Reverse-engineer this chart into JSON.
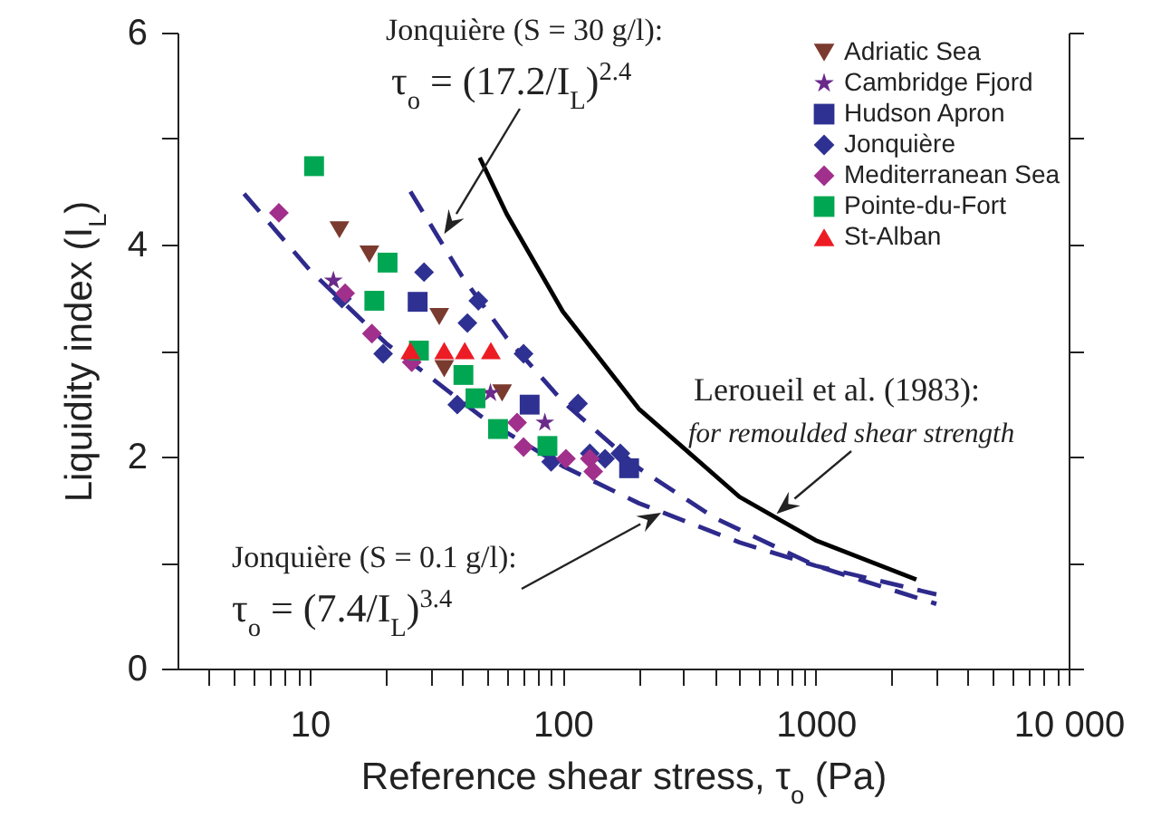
{
  "chart_data": {
    "type": "scatter",
    "xlabel": "Reference shear stress, τ$_{o}$ (Pa)",
    "ylabel": "Liquidity index (I$_{L}$)",
    "log": "x",
    "xlim": [
      3,
      10000
    ],
    "xticks": [
      {
        "value": 4,
        "label": null
      },
      {
        "value": 5,
        "label": null
      },
      {
        "value": 6,
        "label": null
      },
      {
        "value": 7,
        "label": null
      },
      {
        "value": 8,
        "label": null
      },
      {
        "value": 9,
        "label": null
      },
      10,
      {
        "value": 20,
        "label": null
      },
      {
        "value": 30,
        "label": null
      },
      {
        "value": 40,
        "label": null
      },
      {
        "value": 50,
        "label": null
      },
      {
        "value": 60,
        "label": null
      },
      {
        "value": 70,
        "label": null
      },
      {
        "value": 80,
        "label": null
      },
      {
        "value": 90,
        "label": null
      },
      100,
      {
        "value": 200,
        "label": null
      },
      {
        "value": 300,
        "label": null
      },
      {
        "value": 400,
        "label": null
      },
      {
        "value": 500,
        "label": null
      },
      {
        "value": 600,
        "label": null
      },
      {
        "value": 700,
        "label": null
      },
      {
        "value": 800,
        "label": null
      },
      {
        "value": 900,
        "label": null
      },
      1000,
      {
        "value": 2000,
        "label": null
      },
      {
        "value": 3000,
        "label": null
      },
      {
        "value": 4000,
        "label": null
      },
      {
        "value": 5000,
        "label": null
      },
      {
        "value": 6000,
        "label": null
      },
      {
        "value": 7000,
        "label": null
      },
      {
        "value": 8000,
        "label": null
      },
      {
        "value": 9000,
        "label": null
      },
      {
        "value": 10000,
        "label": "10 000"
      }
    ],
    "ylim": [
      0,
      6
    ],
    "yticks": [
      0,
      {
        "value": 1,
        "label": null
      },
      2,
      {
        "value": 3,
        "label": null
      },
      4,
      {
        "value": 5,
        "label": null
      },
      6
    ],
    "tick_labels": "xy",
    "grid": false,
    "legend": "top right",
    "series": [
      {
        "name": "Adriatic Sea",
        "color": "#7b3a2e",
        "marker": "triangle-down",
        "x": [
          13.1,
          17.2,
          32.5,
          34,
          57.6
        ],
        "values": [
          4.14,
          3.91,
          3.32,
          2.83,
          2.6
        ]
      },
      {
        "name": "Cambridge Fjord",
        "color": "#6a2a8a",
        "marker": "star",
        "x": [
          12.4,
          51.8,
          85
        ],
        "values": [
          3.66,
          2.6,
          2.32
        ]
      },
      {
        "name": "Hudson Apron",
        "color": "#2e3192",
        "marker": "square",
        "x": [
          26.7,
          74,
          183
        ],
        "values": [
          3.46,
          2.49,
          1.89
        ]
      },
      {
        "name": "Jonquière",
        "color": "#2e3192",
        "marker": "diamond",
        "x": [
          13.4,
          19.5,
          28.3,
          38.3,
          42,
          46.4,
          70,
          90,
          115,
          128,
          147,
          169
        ],
        "values": [
          3.49,
          2.97,
          3.74,
          2.49,
          3.26,
          3.47,
          2.97,
          1.95,
          2.5,
          2.03,
          1.98,
          2.03
        ]
      },
      {
        "name": "Mediterranean Sea",
        "color": "#a0308c",
        "marker": "diamond",
        "x": [
          7.55,
          13.8,
          17.6,
          25.3,
          66,
          70,
          103,
          128,
          132
        ],
        "values": [
          4.3,
          3.54,
          3.16,
          2.89,
          2.32,
          2.09,
          1.98,
          1.98,
          1.86
        ]
      },
      {
        "name": "Pointe-du-Fort",
        "color": "#00a651",
        "marker": "square",
        "x": [
          10.4,
          20.3,
          18,
          27,
          40.5,
          45.2,
          55.5,
          87
        ],
        "values": [
          4.74,
          3.83,
          3.47,
          3.0,
          2.77,
          2.55,
          2.26,
          2.1
        ]
      },
      {
        "name": "St-Alban",
        "color": "#ed1c24",
        "marker": "triangle",
        "x": [
          25,
          34,
          41,
          52
        ],
        "values": [
          3.0,
          3.0,
          3.0,
          3.0
        ]
      },
      {
        "type": "line",
        "color": "#2e2a8c",
        "line_style": "dashed",
        "x": [
          25,
          40,
          60,
          100,
          200,
          400,
          1000,
          3000
        ],
        "values": [
          4.5,
          3.7,
          3.12,
          2.52,
          1.89,
          1.42,
          0.97,
          0.61
        ]
      },
      {
        "type": "line",
        "color": "#2e2a8c",
        "line_style": "dashed",
        "x": [
          5.5,
          10,
          20,
          50,
          100,
          200,
          500,
          1000,
          3000
        ],
        "values": [
          4.48,
          3.76,
          3.07,
          2.34,
          1.91,
          1.56,
          1.19,
          0.97,
          0.7
        ]
      },
      {
        "type": "line",
        "color": "#000000",
        "line_style": "solid",
        "x": [
          47,
          60,
          100,
          200,
          500,
          1000,
          2500
        ],
        "values": [
          4.82,
          4.29,
          3.37,
          2.45,
          1.62,
          1.21,
          0.84
        ]
      }
    ],
    "annotations": [
      {
        "text": "Jonquière (S = 30 g/l):\nτ$_{o}$ = (17.2/I$_{L}$)$^{2.4}$",
        "x": 34,
        "y": 4.1
      },
      {
        "text": "Leroueil et al. (1983):\nfor remoulded shear strength",
        "x": 700,
        "y": 1.46
      },
      "Jonquière (S = 0.1 g/l):\nτ$_{o}$ = (7.4/I$_{L}$)$^{3.4}$"
    ]
  }
}
